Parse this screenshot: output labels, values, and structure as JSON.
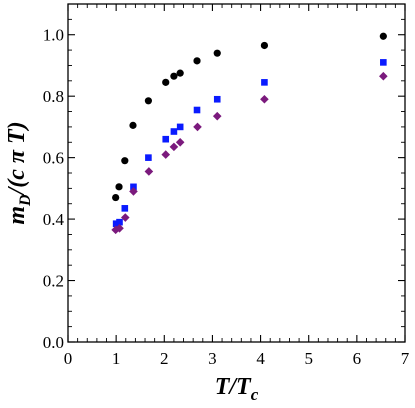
{
  "chart_data": {
    "type": "scatter",
    "xlabel": "T/Tc",
    "xlabel_parts": {
      "main": "T/T",
      "sub": "c"
    },
    "ylabel": "mD/(c π T)",
    "ylabel_parts": {
      "m": "m",
      "sub": "D",
      "rest": "/(c π T)"
    },
    "xlim": [
      0,
      7
    ],
    "ylim": [
      0,
      1.1
    ],
    "x_ticks": [
      0,
      1,
      2,
      3,
      4,
      5,
      6,
      7
    ],
    "y_ticks": [
      0.0,
      0.2,
      0.4,
      0.6,
      0.8,
      1.0
    ],
    "x_tick_labels": [
      "0",
      "1",
      "2",
      "3",
      "4",
      "5",
      "6",
      "7"
    ],
    "y_tick_labels": [
      "0.0",
      "0.2",
      "0.4",
      "0.6",
      "0.8",
      "1.0"
    ],
    "grid": false,
    "series": [
      {
        "marker": "circle",
        "color": "#000000",
        "x": [
          0.99,
          1.06,
          1.18,
          1.35,
          1.67,
          2.03,
          2.2,
          2.33,
          2.68,
          3.1,
          4.08,
          6.55
        ],
        "y": [
          0.47,
          0.505,
          0.59,
          0.705,
          0.785,
          0.845,
          0.865,
          0.875,
          0.915,
          0.94,
          0.965,
          0.995
        ]
      },
      {
        "marker": "square",
        "color": "#0a1bff",
        "x": [
          1.0,
          1.07,
          1.18,
          1.36,
          1.67,
          2.03,
          2.2,
          2.33,
          2.68,
          3.1,
          4.08,
          6.55
        ],
        "y": [
          0.385,
          0.39,
          0.435,
          0.505,
          0.6,
          0.66,
          0.685,
          0.7,
          0.755,
          0.79,
          0.845,
          0.91
        ]
      },
      {
        "marker": "diamond",
        "color": "#7b1a7d",
        "x": [
          0.99,
          1.07,
          1.19,
          1.36,
          1.68,
          2.03,
          2.2,
          2.33,
          2.69,
          3.1,
          4.08,
          6.55
        ],
        "y": [
          0.365,
          0.37,
          0.405,
          0.49,
          0.555,
          0.61,
          0.635,
          0.65,
          0.7,
          0.735,
          0.79,
          0.865
        ]
      }
    ]
  }
}
